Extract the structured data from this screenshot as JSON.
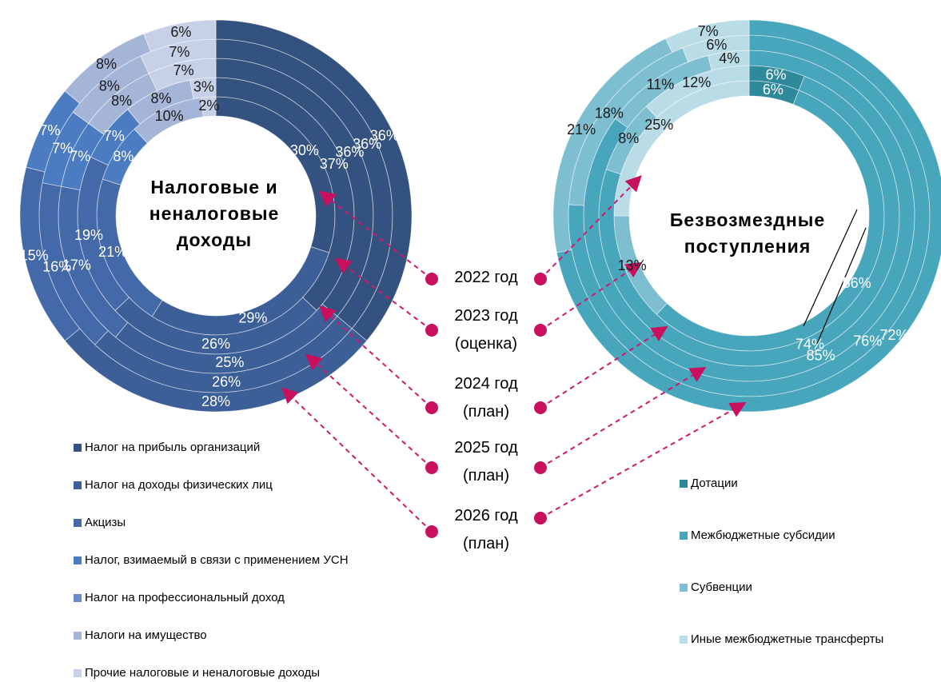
{
  "years": [
    "2022 год",
    "2023 год (оценка)",
    "2024 год (план)",
    "2025 год (план)",
    "2026 год (план)"
  ],
  "chart_data": [
    {
      "type": "donut",
      "title": "Налоговые и неналоговые доходы",
      "series": [
        {
          "name": "Налог на прибыль организаций",
          "color": "#34527f",
          "values": [
            30,
            37,
            36,
            36,
            36
          ],
          "value_labels": [
            "30%",
            "37%",
            "36%",
            "36%",
            "36%"
          ]
        },
        {
          "name": "Налог на доходы физических лиц",
          "color": "#3c5f98",
          "values": [
            29,
            26,
            25,
            26,
            28
          ],
          "value_labels": [
            "29%",
            "26%",
            "25%",
            "26%",
            "28%"
          ]
        },
        {
          "name": "Акцизы",
          "color": "#4469a9",
          "values": [
            21,
            19,
            17,
            16,
            15
          ],
          "value_labels": [
            "21%",
            "19%",
            "17%",
            "16%",
            "15%"
          ]
        },
        {
          "name": "Налог, взимаемый в связи с применением УСН",
          "color": "#4b7cc1",
          "values": [
            8,
            7,
            7,
            7,
            7
          ],
          "value_labels": [
            "8%",
            "7%",
            "7%",
            "7%",
            "7%"
          ]
        },
        {
          "name": "Налог на профессиональный доход",
          "color": "#6a8cc6",
          "values": [
            0,
            0,
            0,
            0,
            0
          ],
          "value_labels": [
            null,
            null,
            null,
            null,
            null
          ]
        },
        {
          "name": "Налоги на имущество",
          "color": "#a5b5d8",
          "values": [
            10,
            8,
            8,
            8,
            8
          ],
          "value_labels": [
            "10%",
            "8%",
            "8%",
            "8%",
            "8%"
          ]
        },
        {
          "name": "Прочие налоговые и неналоговые доходы",
          "color": "#c6d0e6",
          "values": [
            2,
            3,
            7,
            7,
            6
          ],
          "value_labels": [
            "2%",
            "3%",
            "7%",
            "7%",
            "6%"
          ]
        }
      ]
    },
    {
      "type": "donut",
      "title": "Безвозмездные поступления",
      "series": [
        {
          "name": "Дотации",
          "color": "#2e8a9a",
          "values": [
            6,
            6,
            0,
            0,
            0
          ],
          "value_labels": [
            "6%",
            "6%",
            null,
            null,
            null
          ]
        },
        {
          "name": "Межбюджетные субсидии",
          "color": "#47a6bc",
          "values": [
            56,
            74,
            85,
            76,
            72
          ],
          "value_labels": [
            "56%",
            "74%",
            "85%",
            "76%",
            "72%"
          ]
        },
        {
          "name": "Субвенции",
          "color": "#7dbed1",
          "values": [
            13,
            8,
            11,
            18,
            21
          ],
          "value_labels": [
            "13%",
            "8%",
            "11%",
            "18%",
            "21%"
          ]
        },
        {
          "name": "Иные межбюджетные трансферты",
          "color": "#badce7",
          "values": [
            25,
            12,
            4,
            6,
            7
          ],
          "value_labels": [
            "25%",
            "12%",
            "4%",
            "6%",
            "7%"
          ]
        }
      ]
    }
  ]
}
